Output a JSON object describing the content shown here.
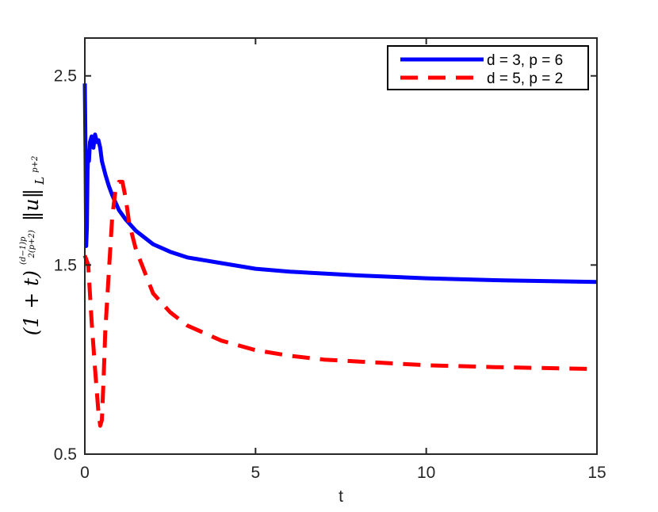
{
  "chart_data": {
    "type": "line",
    "title": "",
    "xlabel": "t",
    "ylabel": {
      "main_left": "(1 + t)",
      "exponent_numerator": "(d−1)p",
      "exponent_denominator": "2(p+2)",
      "norm": "‖u‖",
      "norm_subscript_base": "L",
      "norm_subscript_sup": "p+2"
    },
    "xlim": [
      0,
      15
    ],
    "ylim": [
      0.5,
      2.7
    ],
    "xticks": [
      0,
      5,
      10,
      15
    ],
    "xtick_labels": [
      "0",
      "5",
      "10",
      "15"
    ],
    "yticks": [
      0.5,
      1.5,
      2.5
    ],
    "ytick_labels": [
      "0.5",
      "1.5",
      "2.5"
    ],
    "grid": false,
    "legend_position": "top-right",
    "series": [
      {
        "name": "d = 3, p = 6",
        "color": "#0000ff",
        "style": "solid",
        "x": [
          0,
          0.02,
          0.04,
          0.06,
          0.08,
          0.1,
          0.12,
          0.15,
          0.2,
          0.25,
          0.3,
          0.35,
          0.4,
          0.45,
          0.5,
          0.6,
          0.7,
          0.8,
          0.9,
          1.0,
          1.2,
          1.5,
          2,
          2.5,
          3,
          4,
          5,
          6,
          7,
          8,
          10,
          12,
          15
        ],
        "y": [
          2.46,
          2.1,
          1.6,
          1.7,
          2.0,
          2.1,
          2.05,
          2.15,
          2.18,
          2.12,
          2.19,
          2.15,
          2.16,
          2.12,
          2.05,
          1.98,
          1.92,
          1.87,
          1.83,
          1.79,
          1.74,
          1.68,
          1.61,
          1.57,
          1.54,
          1.51,
          1.48,
          1.465,
          1.455,
          1.445,
          1.43,
          1.42,
          1.41
        ]
      },
      {
        "name": "d = 5, p = 2",
        "color": "#ff0000",
        "style": "dashed",
        "x": [
          0,
          0.1,
          0.2,
          0.3,
          0.4,
          0.45,
          0.5,
          0.55,
          0.6,
          0.7,
          0.8,
          0.9,
          1.0,
          1.1,
          1.2,
          1.3,
          1.5,
          2,
          2.5,
          3,
          4,
          5,
          6,
          7,
          8,
          10,
          12,
          15
        ],
        "y": [
          1.55,
          1.5,
          1.2,
          0.95,
          0.72,
          0.65,
          0.68,
          0.9,
          1.15,
          1.45,
          1.75,
          1.9,
          1.94,
          1.94,
          1.85,
          1.72,
          1.58,
          1.35,
          1.25,
          1.18,
          1.1,
          1.05,
          1.02,
          1.0,
          0.99,
          0.97,
          0.96,
          0.95
        ]
      }
    ]
  }
}
